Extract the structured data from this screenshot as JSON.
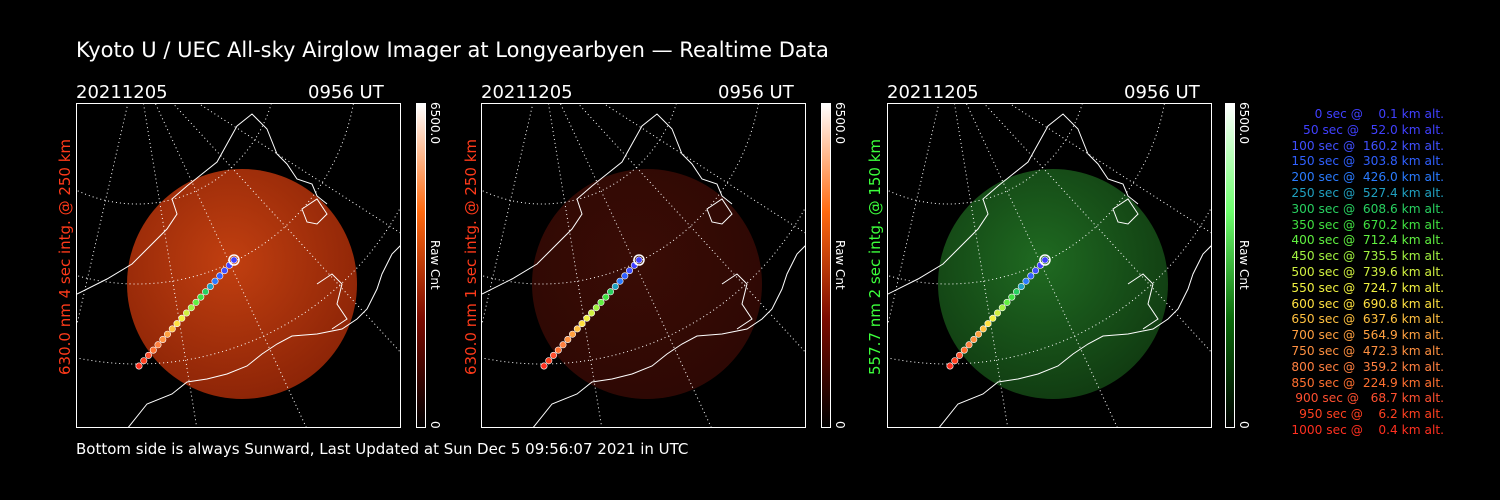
{
  "title": "Kyoto U / UEC All-sky Airglow Imager at Longyearbyen — Realtime Data",
  "footer": "Bottom side is always Sunward, Last Updated at Sun Dec  5 09:56:07 2021 in UTC",
  "panels": [
    {
      "date": "20211205",
      "time": "0956 UT",
      "ylabel": "630.0 nm 4 sec intg. @ 250 km",
      "label_color": "#ff3a1a",
      "cbar_max": "6500.0",
      "cbar_min": "0",
      "cbar_label": "Raw Cnt",
      "image": "red-oval-airglow",
      "colors": [
        "#000000",
        "#7a0a00",
        "#ff6a10",
        "#ffffff"
      ],
      "fill": "#8e2507",
      "glow": "#c13f10"
    },
    {
      "date": "20211205",
      "time": "0956 UT",
      "ylabel": "630.0 nm 1 sec intg. @ 250 km",
      "label_color": "#ff3a1a",
      "cbar_max": "6500.0",
      "cbar_min": "0",
      "cbar_label": "Raw Cnt",
      "image": "dim-red-oval-airglow",
      "colors": [
        "#000000",
        "#7a0a00",
        "#ff6a10",
        "#ffffff"
      ],
      "fill": "#2e0804",
      "glow": "#3a0c05"
    },
    {
      "date": "20211205",
      "time": "0956 UT",
      "ylabel": "557.7 nm 2 sec intg. @ 150 km",
      "label_color": "#3cff3c",
      "cbar_max": "6500.0",
      "cbar_min": "0",
      "cbar_label": "Raw Cnt",
      "image": "green-oval-airglow",
      "colors": [
        "#000000",
        "#0a6a0a",
        "#6dff6d",
        "#ffffff"
      ],
      "fill": "#113d12",
      "glow": "#1f6a21"
    }
  ],
  "legend": [
    {
      "text": "   0 sec @    0.1 km alt.",
      "color": "#4040ff"
    },
    {
      "text": "  50 sec @   52.0 km alt.",
      "color": "#4040ff"
    },
    {
      "text": " 100 sec @  160.2 km alt.",
      "color": "#4050ff"
    },
    {
      "text": " 150 sec @  303.8 km alt.",
      "color": "#3060ff"
    },
    {
      "text": " 200 sec @  426.0 km alt.",
      "color": "#2a7bff"
    },
    {
      "text": " 250 sec @  527.4 km alt.",
      "color": "#20a0c0"
    },
    {
      "text": " 300 sec @  608.6 km alt.",
      "color": "#28d060"
    },
    {
      "text": " 350 sec @  670.2 km alt.",
      "color": "#40e040"
    },
    {
      "text": " 400 sec @  712.4 km alt.",
      "color": "#60f040"
    },
    {
      "text": " 450 sec @  735.5 km alt.",
      "color": "#a0f040"
    },
    {
      "text": " 500 sec @  739.6 km alt.",
      "color": "#d0f040"
    },
    {
      "text": " 550 sec @  724.7 km alt.",
      "color": "#f0f040"
    },
    {
      "text": " 600 sec @  690.8 km alt.",
      "color": "#ffe040"
    },
    {
      "text": " 650 sec @  637.6 km alt.",
      "color": "#ffc040"
    },
    {
      "text": " 700 sec @  564.9 km alt.",
      "color": "#ffa040"
    },
    {
      "text": " 750 sec @  472.3 km alt.",
      "color": "#ff9040"
    },
    {
      "text": " 800 sec @  359.2 km alt.",
      "color": "#ff8040"
    },
    {
      "text": " 850 sec @  224.9 km alt.",
      "color": "#ff7030"
    },
    {
      "text": " 900 sec @   68.7 km alt.",
      "color": "#ff5030"
    },
    {
      "text": " 950 sec @    6.2 km alt.",
      "color": "#ff4020"
    },
    {
      "text": "1000 sec @    0.4 km alt.",
      "color": "#ff3020"
    }
  ]
}
